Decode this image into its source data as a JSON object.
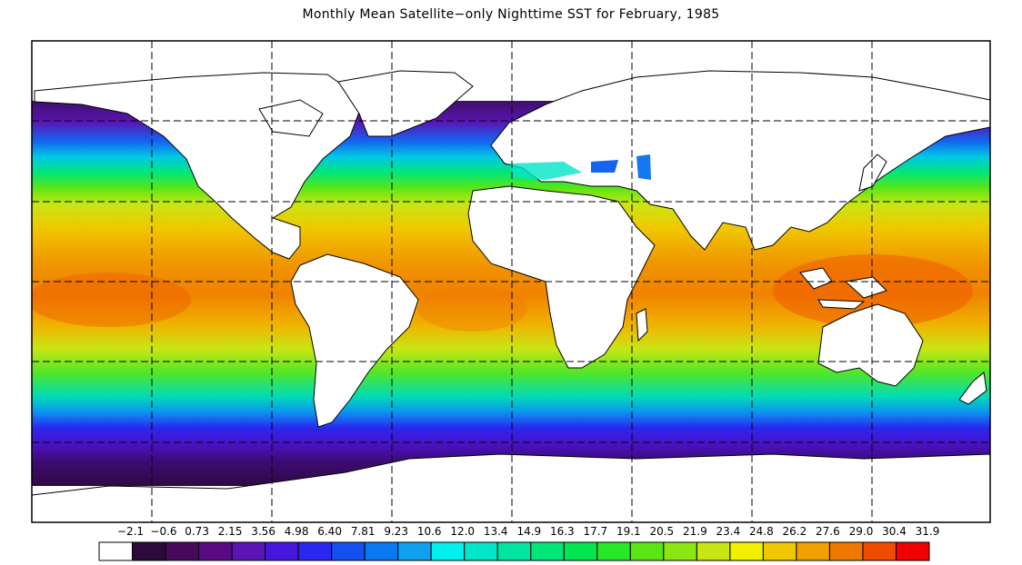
{
  "title": "Monthly Mean Satellite−only Nighttime SST for February, 1985",
  "colorbar": {
    "labels": [
      "−2.1",
      "−0.6",
      "0.73",
      "2.15",
      "3.56",
      "4.98",
      "6.40",
      "7.81",
      "9.23",
      "10.6",
      "12.0",
      "13.4",
      "14.9",
      "16.3",
      "17.7",
      "19.1",
      "20.5",
      "21.9",
      "23.4",
      "24.8",
      "26.2",
      "27.6",
      "29.0",
      "30.4",
      "31.9"
    ],
    "colors": [
      "#ffffff",
      "#2d0a3c",
      "#48095a",
      "#5a0a82",
      "#5a14b4",
      "#4616dc",
      "#2a28f0",
      "#1450f0",
      "#0a78f0",
      "#10a0f0",
      "#00f0f0",
      "#00e6c8",
      "#00e6a0",
      "#00e678",
      "#00e650",
      "#28e628",
      "#5ae614",
      "#8ce614",
      "#c8e614",
      "#f0f000",
      "#f0c800",
      "#f0a000",
      "#f07800",
      "#f04b00",
      "#f00000"
    ]
  },
  "colors": {
    "land": "#ffffff",
    "coast": "#000000",
    "grid": "#000000"
  }
}
